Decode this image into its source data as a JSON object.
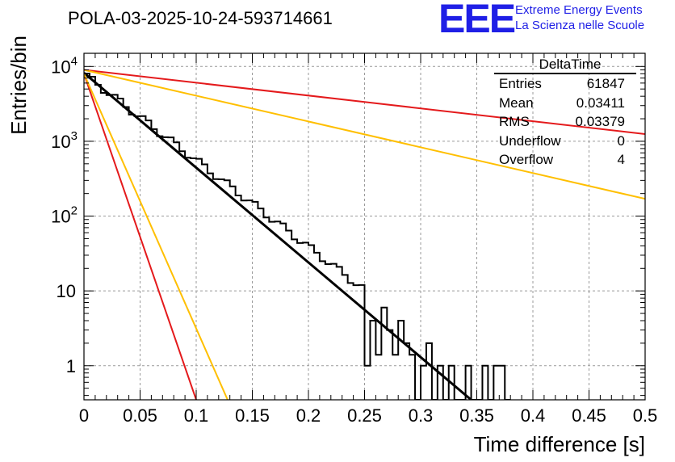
{
  "title": "POLA-03-2025-10-24-593714661",
  "logo": {
    "mark": "EEE",
    "line1": "Extreme Energy Events",
    "line2": "La Scienza nelle Scuole",
    "color": "#1f1fe6"
  },
  "stats_box": {
    "name": "DeltaTime",
    "rows": [
      {
        "label": "Entries",
        "value": "61847"
      },
      {
        "label": "Mean",
        "value": "0.03411"
      },
      {
        "label": "RMS",
        "value": "0.03379"
      },
      {
        "label": "Underflow",
        "value": "0"
      },
      {
        "label": "Overflow",
        "value": "4"
      }
    ]
  },
  "chart_data": {
    "type": "histogram",
    "title": "POLA-03-2025-10-24-593714661",
    "xlabel": "Time difference [s]",
    "ylabel": "Entries/bin",
    "xlim": [
      0,
      0.5
    ],
    "ylim_log": [
      0.35,
      15000
    ],
    "yscale": "log",
    "grid": true,
    "x_ticks": [
      "0",
      "0.05",
      "0.1",
      "0.15",
      "0.2",
      "0.25",
      "0.3",
      "0.35",
      "0.4",
      "0.45",
      "0.5"
    ],
    "y_ticks": [
      {
        "value": 10000,
        "base": "10",
        "exp": "4"
      },
      {
        "value": 1000,
        "base": "10",
        "exp": "3"
      },
      {
        "value": 100,
        "base": "10",
        "exp": "2"
      },
      {
        "value": 10,
        "base": "10",
        "exp": ""
      },
      {
        "value": 1,
        "base": "1",
        "exp": ""
      }
    ],
    "histogram": {
      "bin_width": 0.005,
      "smooth_model": {
        "a": 8000,
        "slope": -26.6
      },
      "tail_counts": [
        {
          "x": 0.25,
          "count": 1
        },
        {
          "x": 0.255,
          "count": 4
        },
        {
          "x": 0.26,
          "count": 1.4
        },
        {
          "x": 0.265,
          "count": 6
        },
        {
          "x": 0.27,
          "count": 3
        },
        {
          "x": 0.275,
          "count": 1.4
        },
        {
          "x": 0.28,
          "count": 4
        },
        {
          "x": 0.285,
          "count": 2
        },
        {
          "x": 0.29,
          "count": 1.4
        },
        {
          "x": 0.295,
          "count": 0.35
        },
        {
          "x": 0.3,
          "count": 1
        },
        {
          "x": 0.305,
          "count": 2
        },
        {
          "x": 0.31,
          "count": 0.35
        },
        {
          "x": 0.315,
          "count": 1
        },
        {
          "x": 0.32,
          "count": 0.35
        },
        {
          "x": 0.325,
          "count": 1
        },
        {
          "x": 0.33,
          "count": 0.35
        },
        {
          "x": 0.335,
          "count": 0.35
        },
        {
          "x": 0.34,
          "count": 1
        },
        {
          "x": 0.345,
          "count": 0.35
        },
        {
          "x": 0.35,
          "count": 0.35
        },
        {
          "x": 0.355,
          "count": 1
        },
        {
          "x": 0.36,
          "count": 0.35
        },
        {
          "x": 0.365,
          "count": 1
        },
        {
          "x": 0.37,
          "count": 1
        },
        {
          "x": 0.375,
          "count": 0.35
        }
      ]
    },
    "series": [
      {
        "name": "fit",
        "color": "#000000",
        "x0": 0,
        "y0": 8200,
        "x1": 0.345,
        "y1": 0.35
      },
      {
        "name": "red steep",
        "color": "#e41a1c",
        "x0": 0,
        "y0": 8000,
        "x1": 0.1,
        "y1": 0.35
      },
      {
        "name": "orange steep",
        "color": "#ffbf00",
        "x0": 0,
        "y0": 8000,
        "x1": 0.128,
        "y1": 0.35
      },
      {
        "name": "red shallow",
        "color": "#e41a1c",
        "x0": 0,
        "y0": 9000,
        "x1": 0.5,
        "y1": 1250
      },
      {
        "name": "orange shallow",
        "color": "#ffbf00",
        "x0": 0,
        "y0": 9000,
        "x1": 0.5,
        "y1": 170
      }
    ]
  }
}
